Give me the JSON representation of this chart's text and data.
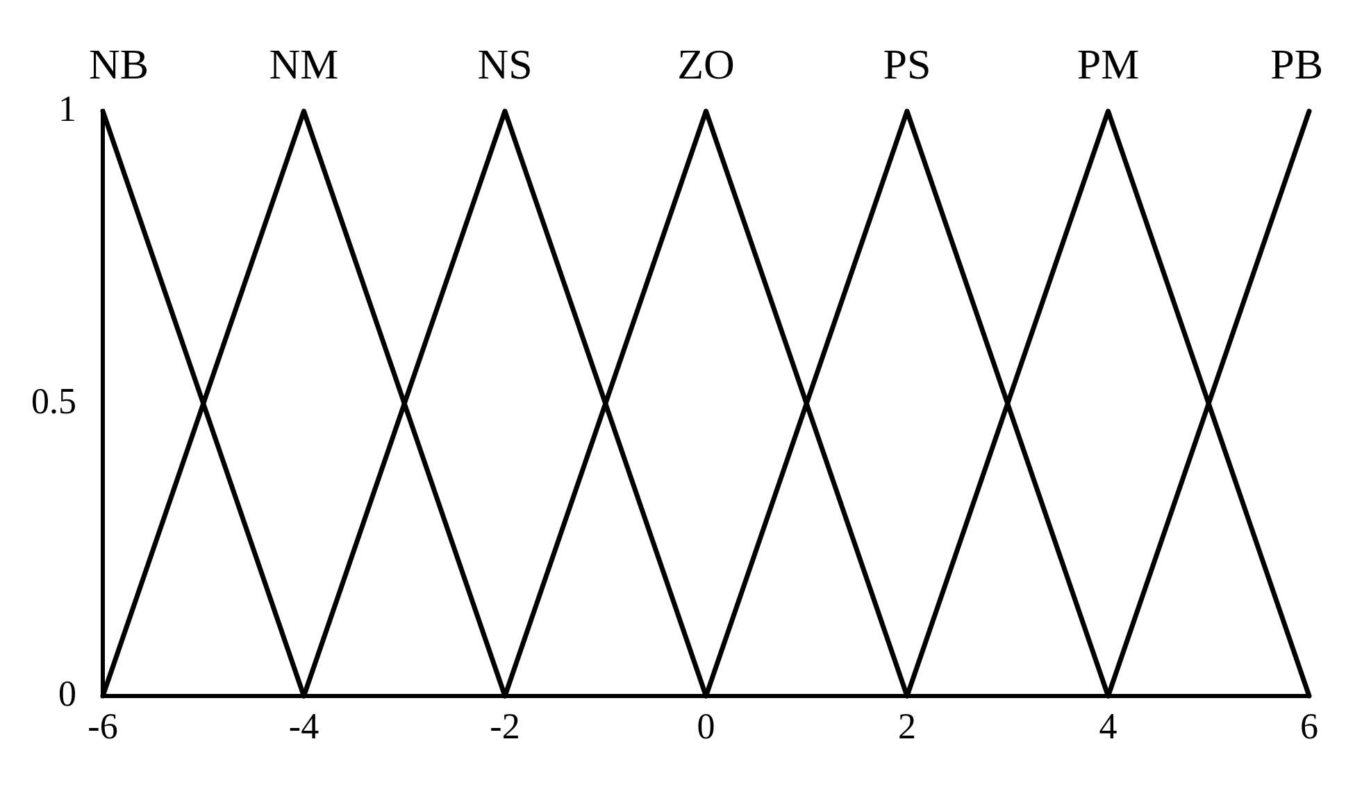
{
  "chart_data": {
    "type": "line",
    "series": [
      {
        "name": "NB",
        "color": "#000000",
        "x": [
          -6,
          -4
        ],
        "values": [
          1,
          0
        ]
      },
      {
        "name": "NM",
        "color": "#000000",
        "x": [
          -6,
          -4,
          -2
        ],
        "values": [
          0,
          1,
          0
        ]
      },
      {
        "name": "NS",
        "color": "#000000",
        "x": [
          -4,
          -2,
          0
        ],
        "values": [
          0,
          1,
          0
        ]
      },
      {
        "name": "ZO",
        "color": "#000000",
        "x": [
          -2,
          0,
          2
        ],
        "values": [
          0,
          1,
          0
        ]
      },
      {
        "name": "PS",
        "color": "#000000",
        "x": [
          0,
          2,
          4
        ],
        "values": [
          0,
          1,
          0
        ]
      },
      {
        "name": "PM",
        "color": "#000000",
        "x": [
          2,
          4,
          6
        ],
        "values": [
          0,
          1,
          0
        ]
      },
      {
        "name": "PB",
        "color": "#000000",
        "x": [
          4,
          6
        ],
        "values": [
          0,
          1
        ]
      }
    ],
    "xlim": [
      -6,
      6
    ],
    "xticks": [
      -6,
      -4,
      -2,
      0,
      2,
      4,
      6
    ],
    "ylim": [
      0,
      1
    ],
    "yticks": [
      0,
      0.5,
      1
    ],
    "grid": false,
    "legend": false,
    "marker": "none",
    "line_style": "solid"
  }
}
